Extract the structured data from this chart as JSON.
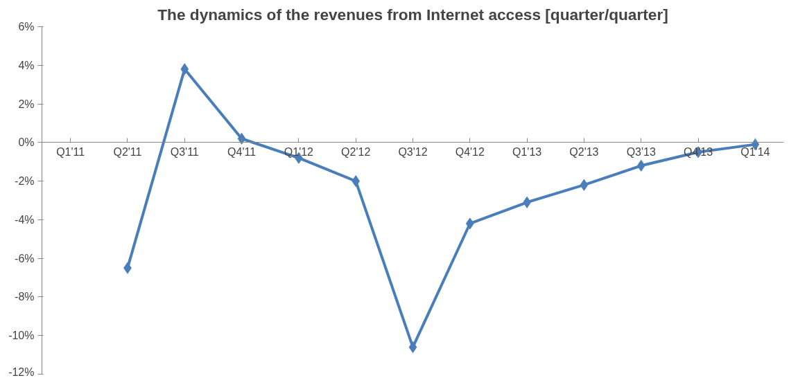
{
  "chart_data": {
    "type": "line",
    "title": "The dynamics of the revenues from Internet access [quarter/quarter]",
    "categories": [
      "Q1'11",
      "Q2'11",
      "Q3'11",
      "Q4'11",
      "Q1'12",
      "Q2'12",
      "Q3'12",
      "Q4'12",
      "Q1'13",
      "Q2'13",
      "Q3'13",
      "Q4'13",
      "Q1'14"
    ],
    "series": [
      {
        "color": "#4a7ebb",
        "values": [
          null,
          -6.5,
          3.8,
          0.2,
          -0.8,
          -2.0,
          -10.6,
          -4.2,
          -3.1,
          -2.2,
          -1.2,
          -0.5,
          -0.1
        ]
      }
    ],
    "ylim": [
      -12,
      6
    ],
    "yticks": [
      {
        "value": -12,
        "label": "-12%"
      },
      {
        "value": -10,
        "label": "-10%"
      },
      {
        "value": -8,
        "label": "-8%"
      },
      {
        "value": -6,
        "label": "-6%"
      },
      {
        "value": -4,
        "label": "-4%"
      },
      {
        "value": -2,
        "label": "-2%"
      },
      {
        "value": 0,
        "label": "0%"
      },
      {
        "value": 2,
        "label": "2%"
      },
      {
        "value": 4,
        "label": "4%"
      },
      {
        "value": 6,
        "label": "6%"
      }
    ],
    "grid": false,
    "marker": "diamond",
    "line_style": "solid"
  }
}
